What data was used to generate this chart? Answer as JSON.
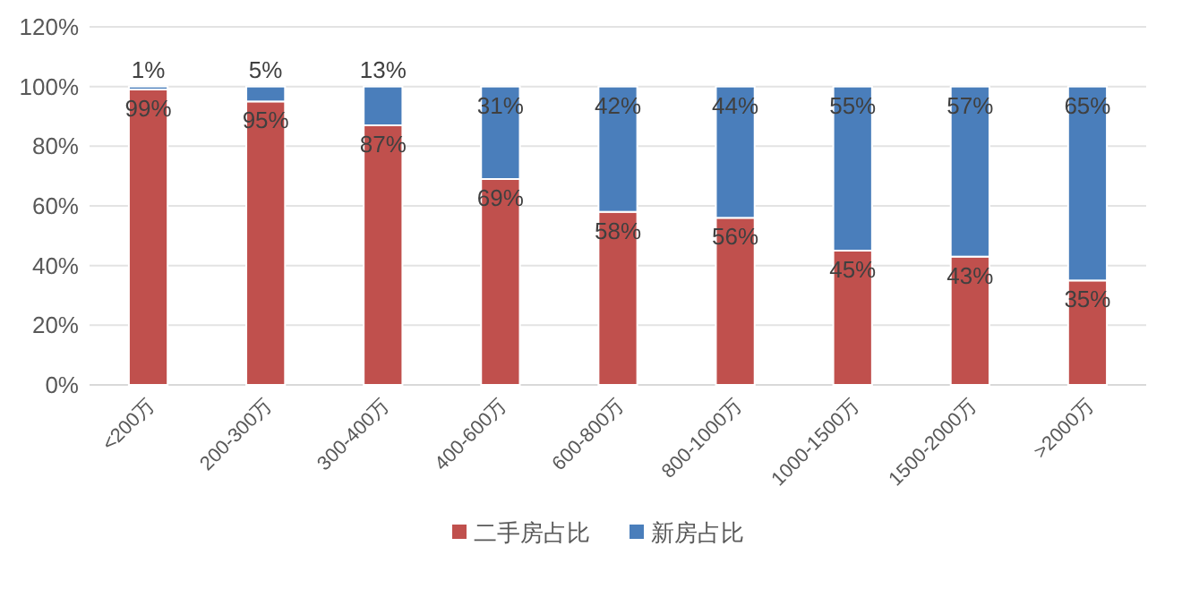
{
  "chart_data": {
    "type": "bar",
    "stacked": true,
    "categories": [
      "<200万",
      "200-300万",
      "300-400万",
      "400-600万",
      "600-800万",
      "800-1000万",
      "1000-1500万",
      "1500-2000万",
      ">2000万"
    ],
    "series": [
      {
        "name": "二手房占比",
        "color": "#c0504d",
        "values": [
          99,
          95,
          87,
          69,
          58,
          56,
          45,
          43,
          35
        ],
        "value_labels": [
          "99%",
          "95%",
          "87%",
          "69%",
          "58%",
          "56%",
          "45%",
          "43%",
          "35%"
        ]
      },
      {
        "name": "新房占比",
        "color": "#4a7ebb",
        "values": [
          1,
          5,
          13,
          31,
          42,
          44,
          55,
          57,
          65
        ],
        "value_labels": [
          "1%",
          "5%",
          "13%",
          "31%",
          "42%",
          "44%",
          "55%",
          "57%",
          "65%"
        ]
      }
    ],
    "ylim": [
      0,
      120
    ],
    "yticks": [
      {
        "value": 0,
        "label": "0%"
      },
      {
        "value": 20,
        "label": "20%"
      },
      {
        "value": 40,
        "label": "40%"
      },
      {
        "value": 60,
        "label": "60%"
      },
      {
        "value": 80,
        "label": "80%"
      },
      {
        "value": 100,
        "label": "100%"
      },
      {
        "value": 120,
        "label": "120%"
      }
    ],
    "grid": "y",
    "legend": "bottom"
  }
}
